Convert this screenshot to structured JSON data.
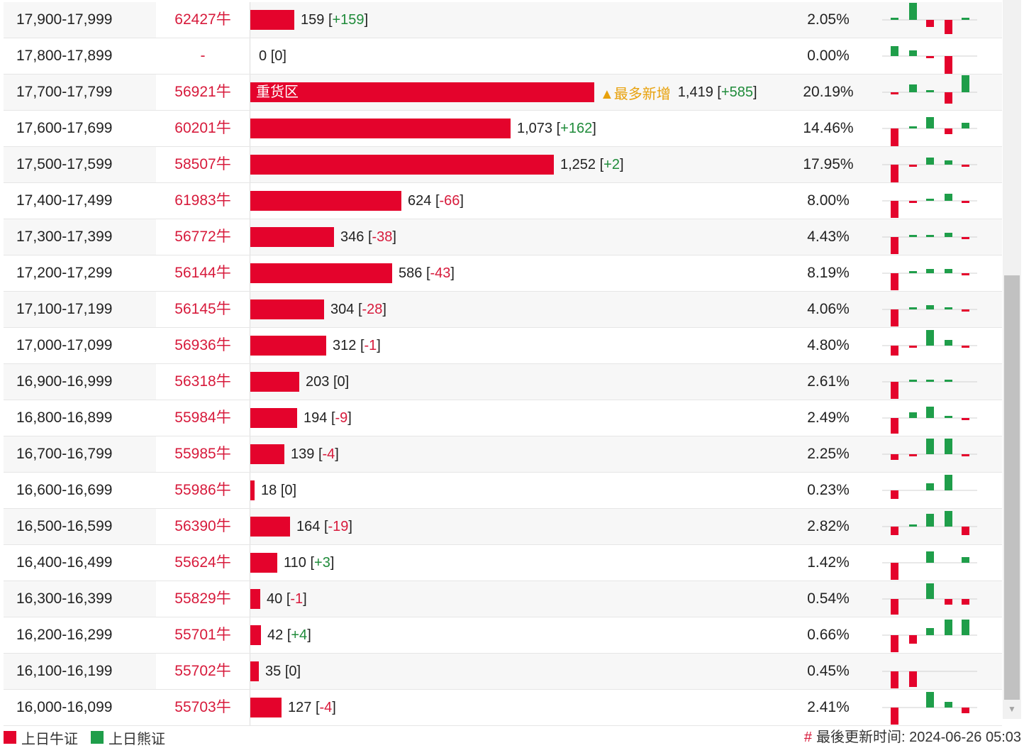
{
  "colors": {
    "bull": "#e4032c",
    "bear": "#1f9e4a",
    "accent_red": "#d71a3b",
    "highlight": "#e8a10c"
  },
  "rows": [
    {
      "range": "17,900-17,999",
      "code": "62427牛",
      "qty": "159",
      "chg": "+159",
      "pct": "2.05%",
      "bar": 0.127,
      "spark": [
        0,
        0,
        0,
        0,
        0
      ]
    },
    {
      "range": "17,800-17,899",
      "code": "-",
      "qty": "0",
      "chg": "0",
      "pct": "0.00%",
      "bar": 0,
      "spark": [
        0,
        0,
        0,
        0,
        0
      ]
    },
    {
      "range": "17,700-17,799",
      "code": "56921牛",
      "qty": "1,419",
      "chg": "+585",
      "pct": "20.19%",
      "bar": 1.0,
      "label": "重货区",
      "highlight": "▲最多新增",
      "spark": [
        0,
        0,
        0,
        0,
        0
      ]
    },
    {
      "range": "17,600-17,699",
      "code": "60201牛",
      "qty": "1,073",
      "chg": "+162",
      "pct": "14.46%",
      "bar": 0.756,
      "spark": [
        0,
        0,
        0,
        0,
        0
      ]
    },
    {
      "range": "17,500-17,599",
      "code": "58507牛",
      "qty": "1,252",
      "chg": "+2",
      "pct": "17.95%",
      "bar": 0.883,
      "spark": [
        0,
        0,
        0,
        0,
        0
      ]
    },
    {
      "range": "17,400-17,499",
      "code": "61983牛",
      "qty": "624",
      "chg": "-66",
      "pct": "8.00%",
      "bar": 0.44,
      "spark": [
        0,
        0,
        0,
        0,
        0
      ]
    },
    {
      "range": "17,300-17,399",
      "code": "56772牛",
      "qty": "346",
      "chg": "-38",
      "pct": "4.43%",
      "bar": 0.244,
      "spark": [
        0,
        0,
        0,
        0,
        0
      ]
    },
    {
      "range": "17,200-17,299",
      "code": "56144牛",
      "qty": "586",
      "chg": "-43",
      "pct": "8.19%",
      "bar": 0.413,
      "spark": [
        0,
        0,
        0,
        0,
        0
      ]
    },
    {
      "range": "17,100-17,199",
      "code": "56145牛",
      "qty": "304",
      "chg": "-28",
      "pct": "4.06%",
      "bar": 0.214,
      "spark": [
        0,
        0,
        0,
        0,
        0
      ]
    },
    {
      "range": "17,000-17,099",
      "code": "56936牛",
      "qty": "312",
      "chg": "-1",
      "pct": "4.80%",
      "bar": 0.22,
      "spark": [
        0,
        0,
        0,
        0,
        0
      ]
    },
    {
      "range": "16,900-16,999",
      "code": "56318牛",
      "qty": "203",
      "chg": "0",
      "pct": "2.61%",
      "bar": 0.143,
      "spark": [
        0,
        0,
        0,
        0,
        0
      ]
    },
    {
      "range": "16,800-16,899",
      "code": "55984牛",
      "qty": "194",
      "chg": "-9",
      "pct": "2.49%",
      "bar": 0.137,
      "spark": [
        0,
        0,
        0,
        0,
        0
      ]
    },
    {
      "range": "16,700-16,799",
      "code": "55985牛",
      "qty": "139",
      "chg": "-4",
      "pct": "2.25%",
      "bar": 0.098,
      "spark": [
        0,
        0,
        0,
        0,
        0
      ]
    },
    {
      "range": "16,600-16,699",
      "code": "55986牛",
      "qty": "18",
      "chg": "0",
      "pct": "0.23%",
      "bar": 0.013,
      "spark": [
        0,
        0,
        0,
        0,
        0
      ]
    },
    {
      "range": "16,500-16,599",
      "code": "56390牛",
      "qty": "164",
      "chg": "-19",
      "pct": "2.82%",
      "bar": 0.116,
      "spark": [
        0,
        0,
        0,
        0,
        0
      ]
    },
    {
      "range": "16,400-16,499",
      "code": "55624牛",
      "qty": "110",
      "chg": "+3",
      "pct": "1.42%",
      "bar": 0.078,
      "spark": [
        0,
        0,
        0,
        0,
        0
      ]
    },
    {
      "range": "16,300-16,399",
      "code": "55829牛",
      "qty": "40",
      "chg": "-1",
      "pct": "0.54%",
      "bar": 0.028,
      "spark": [
        0,
        0,
        0,
        0,
        0
      ]
    },
    {
      "range": "16,200-16,299",
      "code": "55701牛",
      "qty": "42",
      "chg": "+4",
      "pct": "0.66%",
      "bar": 0.03,
      "spark": [
        0,
        0,
        0,
        0,
        0
      ]
    },
    {
      "range": "16,100-16,199",
      "code": "55702牛",
      "qty": "35",
      "chg": "0",
      "pct": "0.45%",
      "bar": 0.025,
      "spark": [
        0,
        0,
        0,
        0,
        0
      ]
    },
    {
      "range": "16,000-16,099",
      "code": "55703牛",
      "qty": "127",
      "chg": "-4",
      "pct": "2.41%",
      "bar": 0.09,
      "spark": [
        0,
        0,
        0,
        0,
        0
      ]
    }
  ],
  "legend": {
    "bull_label": "上日牛证",
    "bear_label": "上日熊证"
  },
  "update": {
    "hash": "#",
    "label": "最後更新时间: 2024-06-26 05:03"
  }
}
